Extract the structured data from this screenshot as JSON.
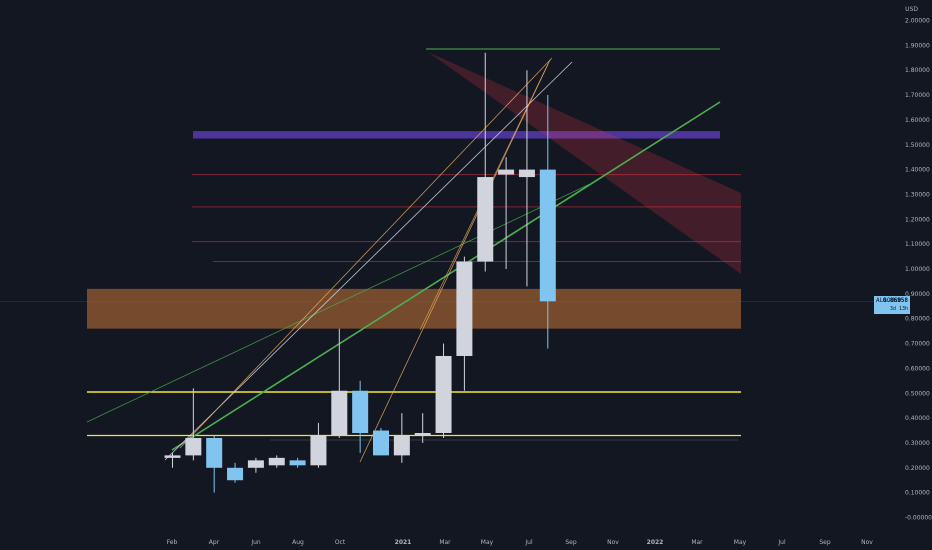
{
  "chart_data": {
    "type": "candlestick",
    "symbol": "ALGOUSD",
    "currency": "USD",
    "y_tick_labels": [
      "-0.00000",
      "0.10000",
      "0.20000",
      "0.30000",
      "0.40000",
      "0.50000",
      "0.60000",
      "0.70000",
      "0.80000",
      "0.90000",
      "1.00000",
      "1.10000",
      "1.20000",
      "1.30000",
      "1.40000",
      "1.50000",
      "1.60000",
      "1.70000",
      "1.80000",
      "1.90000",
      "2.00000"
    ],
    "ylim": [
      -0.05,
      2.07
    ],
    "x_tick_labels": [
      "Feb",
      "Apr",
      "Jun",
      "Aug",
      "Oct",
      "2021",
      "Mar",
      "May",
      "Jul",
      "Sep",
      "Nov",
      "2022",
      "Mar",
      "May",
      "Jul",
      "Sep",
      "Nov"
    ],
    "last_price": "0.86958",
    "last_price_value": 0.8696,
    "countdown": "3d 13h",
    "colors": {
      "up": "#d1d4dc",
      "down": "#81c4f0",
      "background": "#131722",
      "support": "#f6e52e",
      "zone": "#f0893c",
      "fib": "#f23645",
      "resistance": "#7c4dff",
      "trend": "#4caf50"
    },
    "candles": [
      {
        "open": 0.24,
        "high": 0.26,
        "low": 0.2,
        "close": 0.25
      },
      {
        "open": 0.25,
        "high": 0.52,
        "low": 0.23,
        "close": 0.32
      },
      {
        "open": 0.32,
        "high": 0.33,
        "low": 0.1,
        "close": 0.2
      },
      {
        "open": 0.2,
        "high": 0.22,
        "low": 0.14,
        "close": 0.15
      },
      {
        "open": 0.2,
        "high": 0.24,
        "low": 0.18,
        "close": 0.23
      },
      {
        "open": 0.21,
        "high": 0.25,
        "low": 0.2,
        "close": 0.24
      },
      {
        "open": 0.23,
        "high": 0.24,
        "low": 0.2,
        "close": 0.21
      },
      {
        "open": 0.21,
        "high": 0.38,
        "low": 0.2,
        "close": 0.33
      },
      {
        "open": 0.33,
        "high": 0.76,
        "low": 0.32,
        "close": 0.51
      },
      {
        "open": 0.51,
        "high": 0.55,
        "low": 0.26,
        "close": 0.34
      },
      {
        "open": 0.35,
        "high": 0.36,
        "low": 0.25,
        "close": 0.25
      },
      {
        "open": 0.25,
        "high": 0.42,
        "low": 0.22,
        "close": 0.33
      },
      {
        "open": 0.33,
        "high": 0.42,
        "low": 0.3,
        "close": 0.34
      },
      {
        "open": 0.34,
        "high": 0.7,
        "low": 0.32,
        "close": 0.65
      },
      {
        "open": 0.65,
        "high": 1.05,
        "low": 0.51,
        "close": 1.03
      },
      {
        "open": 1.03,
        "high": 1.87,
        "low": 0.99,
        "close": 1.37
      },
      {
        "open": 1.38,
        "high": 1.45,
        "low": 1.0,
        "close": 1.4
      },
      {
        "open": 1.37,
        "high": 1.8,
        "low": 0.93,
        "close": 1.4
      },
      {
        "open": 1.4,
        "high": 1.7,
        "low": 0.68,
        "close": 0.87
      }
    ]
  }
}
